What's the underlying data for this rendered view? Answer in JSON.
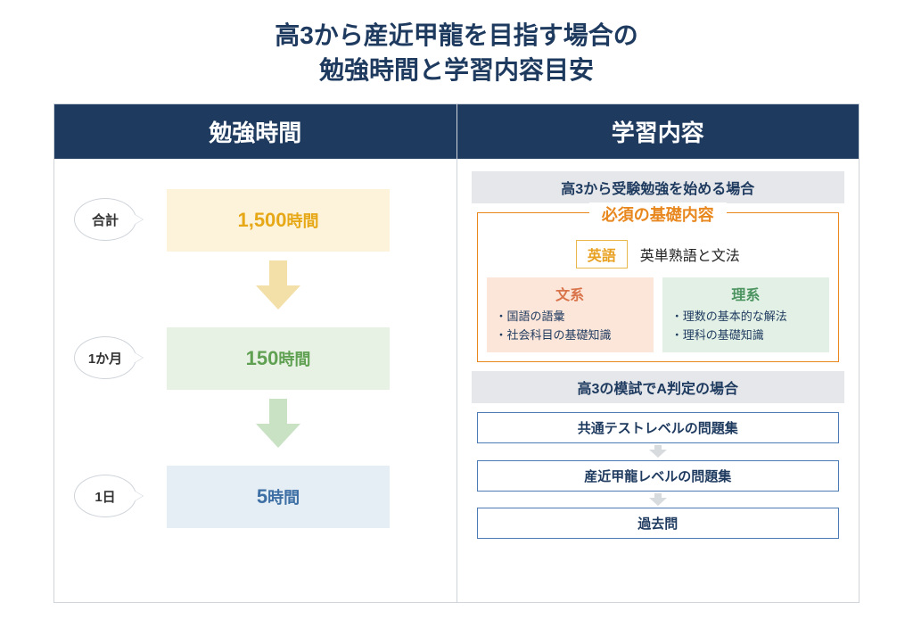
{
  "title_line1": "高3から産近甲龍を目指す場合の",
  "title_line2": "勉強時間と学習内容目安",
  "colors": {
    "header_bg": "#1e3a5f",
    "title_color": "#1e3a5f",
    "section_bg": "#e5e7ea",
    "orange": "#e8871e",
    "yellow_block": "#fdf3db",
    "yellow_text": "#e6a817",
    "green_block": "#e8f2e4",
    "green_text": "#5fa052",
    "blue_block": "#e5eef5",
    "blue_text": "#3d6fa5",
    "human_box_bg": "#fce6d9",
    "human_title": "#d9734a",
    "sci_box_bg": "#e2f0e5",
    "sci_title": "#4b9460",
    "step_border": "#4a7bb5",
    "arrow_gray": "#d8dbde"
  },
  "left": {
    "header": "勉強時間",
    "items": [
      {
        "label": "合計",
        "value": "1,500",
        "unit": "時間",
        "bg": "#fdf3db",
        "fg": "#e6a817",
        "arrow": "#f3dfa8"
      },
      {
        "label": "1か月",
        "value": "150",
        "unit": "時間",
        "bg": "#e8f2e4",
        "fg": "#5fa052",
        "arrow": "#c9e2c4"
      },
      {
        "label": "1日",
        "value": "5",
        "unit": "時間",
        "bg": "#e5eef5",
        "fg": "#3d6fa5",
        "arrow": null
      }
    ]
  },
  "right": {
    "header": "学習内容",
    "section1": {
      "title": "高3から受験勉強を始める場合",
      "req_title": "必須の基礎内容",
      "english_tag": "英語",
      "english_desc": "英単熟語と文法",
      "humanities": {
        "title": "文系",
        "items": [
          "国語の語彙",
          "社会科目の基礎知識"
        ]
      },
      "sciences": {
        "title": "理系",
        "items": [
          "理数の基本的な解法",
          "理科の基礎知識"
        ]
      }
    },
    "section2": {
      "title": "高3の模試でA判定の場合",
      "steps": [
        "共通テストレベルの問題集",
        "産近甲龍レベルの問題集",
        "過去問"
      ]
    }
  }
}
